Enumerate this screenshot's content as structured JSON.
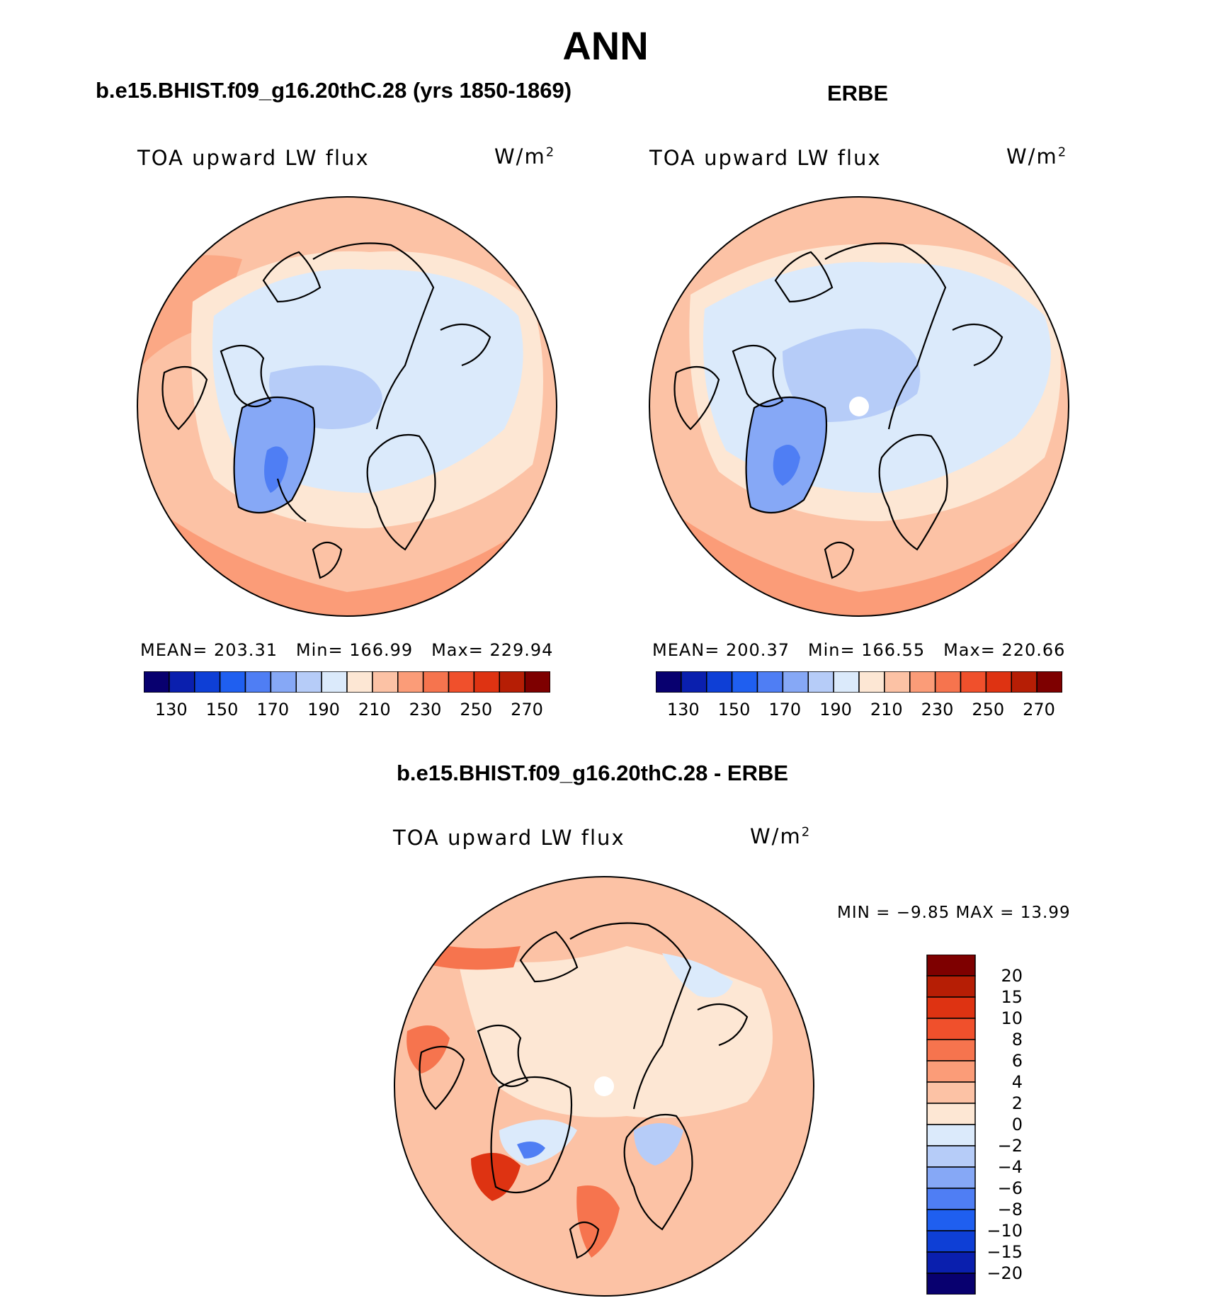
{
  "page": {
    "title": "ANN"
  },
  "panels": [
    {
      "id": "model",
      "title": "b.e15.BHIST.f09_g16.20thC.28 (yrs 1850-1869)",
      "variable_label": "TOA upward LW flux",
      "units_base": "W/m",
      "units_exp": "2",
      "stats": {
        "mean_label": "MEAN=",
        "mean": "203.31",
        "min_label": "Min=",
        "min": "166.99",
        "max_label": "Max=",
        "max": "229.94"
      },
      "has_polar_hole": false
    },
    {
      "id": "obs",
      "title": "ERBE",
      "variable_label": "TOA upward LW flux",
      "units_base": "W/m",
      "units_exp": "2",
      "stats": {
        "mean_label": "MEAN=",
        "mean": "200.37",
        "min_label": "Min=",
        "min": "166.55",
        "max_label": "Max=",
        "max": "220.66"
      },
      "has_polar_hole": true
    },
    {
      "id": "diff",
      "title": "b.e15.BHIST.f09_g16.20thC.28 - ERBE",
      "variable_label": "TOA upward LW flux",
      "units_base": "W/m",
      "units_exp": "2",
      "minmax_text": "MIN =   −9.85 MAX =   13.99",
      "has_polar_hole": true
    }
  ],
  "colorbar_horizontal": {
    "tick_labels": [
      "130",
      "150",
      "170",
      "190",
      "210",
      "230",
      "250",
      "270"
    ],
    "colors": [
      "#08006f",
      "#0a1fae",
      "#0e3fd6",
      "#1f5ff0",
      "#4f7ef4",
      "#86a8f6",
      "#b6ccf8",
      "#dbeafb",
      "#fde7d4",
      "#fcc2a5",
      "#fb9c78",
      "#f6744e",
      "#f0502c",
      "#de3312",
      "#b61e05",
      "#7e0000"
    ]
  },
  "colorbar_vertical": {
    "tick_labels": [
      "20",
      "15",
      "10",
      "8",
      "6",
      "4",
      "2",
      "0",
      "−2",
      "−4",
      "−6",
      "−8",
      "−10",
      "−15",
      "−20"
    ],
    "colors": [
      "#7e0000",
      "#b61e05",
      "#de3312",
      "#f0502c",
      "#f6744e",
      "#fb9c78",
      "#fcc2a5",
      "#fde7d4",
      "#dbeafb",
      "#b6ccf8",
      "#86a8f6",
      "#4f7ef4",
      "#1f5ff0",
      "#0e3fd6",
      "#0a1fae",
      "#08006f"
    ]
  },
  "map_colors": {
    "warm_1": "#fde7d4",
    "warm_2": "#fcc2a5",
    "warm_3": "#fb9c78",
    "warm_4": "#f6744e",
    "warm_5": "#de3312",
    "cool_1": "#dbeafb",
    "cool_2": "#b6ccf8",
    "cool_3": "#86a8f6",
    "cool_4": "#4f7ef4",
    "cool_5": "#1f5ff0"
  }
}
